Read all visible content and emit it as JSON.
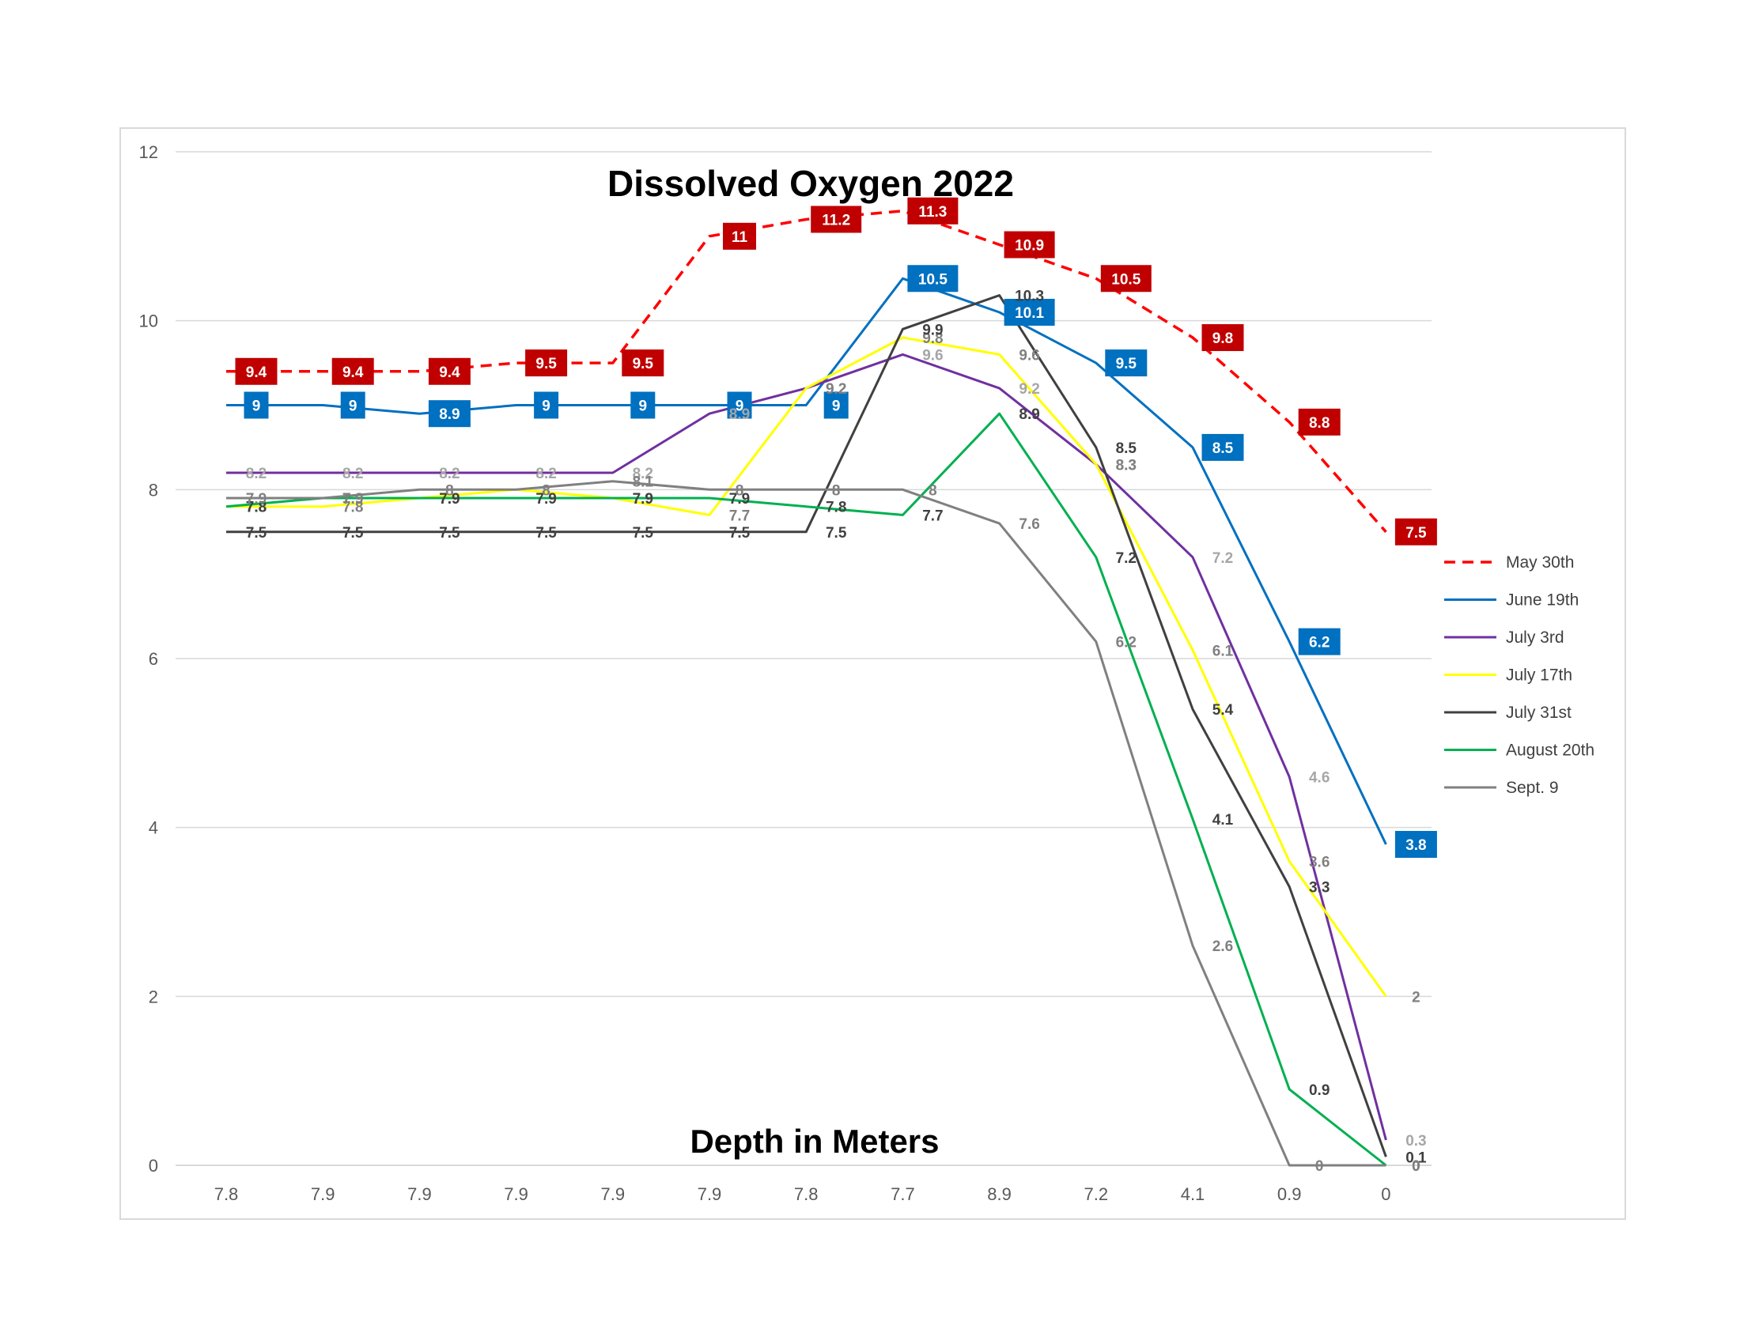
{
  "chart_data": {
    "type": "line",
    "title": "Dissolved Oxygen 2022",
    "xlabel": "Depth in Meters",
    "ylabel": "",
    "categories": [
      "7.8",
      "7.9",
      "7.9",
      "7.9",
      "7.9",
      "7.9",
      "7.8",
      "7.7",
      "8.9",
      "7.2",
      "4.1",
      "0.9",
      "0"
    ],
    "ylim": [
      0,
      12
    ],
    "yticks": [
      0,
      2,
      4,
      6,
      8,
      10,
      12
    ],
    "grid": "horizontal",
    "legend_position": "right",
    "series": [
      {
        "name": "May 30th",
        "color": "#ff0000",
        "dash": true,
        "label_style": "box",
        "label_bg": "#c00000",
        "values": [
          9.4,
          9.4,
          9.4,
          9.5,
          9.5,
          11,
          11.2,
          11.3,
          10.9,
          10.5,
          9.8,
          8.8,
          7.5
        ]
      },
      {
        "name": "June 19th",
        "color": "#0070c0",
        "dash": false,
        "label_style": "box",
        "label_bg": "#0070c0",
        "values": [
          9,
          9,
          8.9,
          9,
          9,
          9,
          9,
          10.5,
          10.1,
          9.5,
          8.5,
          6.2,
          3.8
        ]
      },
      {
        "name": "July 3rd",
        "color": "#7030a0",
        "dash": false,
        "label_style": "text",
        "label_color": "#a6a6a6",
        "values": [
          8.2,
          8.2,
          8.2,
          8.2,
          8.2,
          8.9,
          9.2,
          9.6,
          9.2,
          8.3,
          7.2,
          4.6,
          0.3
        ]
      },
      {
        "name": "July 17th",
        "color": "#ffff00",
        "dash": false,
        "label_style": "text",
        "label_color": "#808080",
        "values": [
          7.8,
          7.8,
          7.9,
          8,
          7.9,
          7.7,
          9.2,
          9.8,
          9.6,
          8.3,
          6.1,
          3.6,
          2
        ]
      },
      {
        "name": "July 31st",
        "color": "#404040",
        "dash": false,
        "label_style": "text",
        "label_color": "#404040",
        "values": [
          7.5,
          7.5,
          7.5,
          7.5,
          7.5,
          7.5,
          7.5,
          9.9,
          10.3,
          8.5,
          5.4,
          3.3,
          0.1
        ]
      },
      {
        "name": "August 20th",
        "color": "#00b050",
        "dash": false,
        "label_style": "text",
        "label_color": "#404040",
        "values": [
          7.8,
          7.9,
          7.9,
          7.9,
          7.9,
          7.9,
          7.8,
          7.7,
          8.9,
          7.2,
          4.1,
          0.9,
          0
        ]
      },
      {
        "name": "Sept. 9",
        "color": "#808080",
        "dash": false,
        "label_style": "text",
        "label_color": "#808080",
        "values": [
          7.9,
          7.9,
          8,
          8,
          8.1,
          8,
          8,
          8,
          7.6,
          6.2,
          2.6,
          0,
          0
        ]
      }
    ]
  }
}
